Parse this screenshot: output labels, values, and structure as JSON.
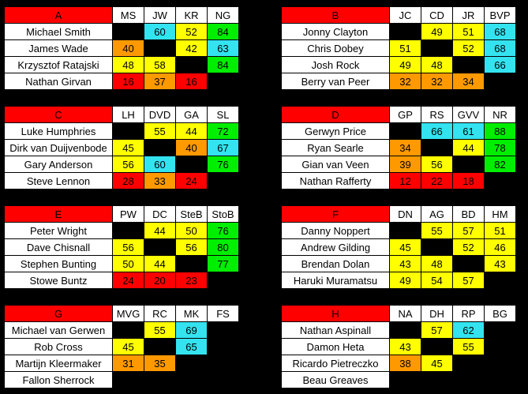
{
  "groups": [
    {
      "label": "A",
      "players": [
        "MS",
        "JW",
        "KR",
        "NG"
      ],
      "rows": [
        {
          "name": "Michael Smith",
          "cells": [
            [
              "",
              "black"
            ],
            [
              "60",
              "cyan"
            ],
            [
              "52",
              "yellow"
            ],
            [
              "84",
              "green"
            ]
          ]
        },
        {
          "name": "James Wade",
          "cells": [
            [
              "40",
              "orange"
            ],
            [
              "",
              "black"
            ],
            [
              "42",
              "yellow"
            ],
            [
              "63",
              "cyan"
            ]
          ]
        },
        {
          "name": "Krzysztof Ratajski",
          "cells": [
            [
              "48",
              "yellow"
            ],
            [
              "58",
              "yellow"
            ],
            [
              "",
              "black"
            ],
            [
              "84",
              "green"
            ]
          ]
        },
        {
          "name": "Nathan Girvan",
          "cells": [
            [
              "16",
              "red"
            ],
            [
              "37",
              "orange"
            ],
            [
              "16",
              "red"
            ],
            [
              "",
              "empty"
            ]
          ]
        }
      ]
    },
    {
      "label": "B",
      "players": [
        "JC",
        "CD",
        "JR",
        "BVP"
      ],
      "rows": [
        {
          "name": "Jonny Clayton",
          "cells": [
            [
              "",
              "black"
            ],
            [
              "49",
              "yellow"
            ],
            [
              "51",
              "yellow"
            ],
            [
              "68",
              "cyan"
            ]
          ]
        },
        {
          "name": "Chris Dobey",
          "cells": [
            [
              "51",
              "yellow"
            ],
            [
              "",
              "black"
            ],
            [
              "52",
              "yellow"
            ],
            [
              "68",
              "cyan"
            ]
          ]
        },
        {
          "name": "Josh Rock",
          "cells": [
            [
              "49",
              "yellow"
            ],
            [
              "48",
              "yellow"
            ],
            [
              "",
              "black"
            ],
            [
              "66",
              "cyan"
            ]
          ]
        },
        {
          "name": "Berry van Peer",
          "cells": [
            [
              "32",
              "orange"
            ],
            [
              "32",
              "orange"
            ],
            [
              "34",
              "orange"
            ],
            [
              "",
              "empty"
            ]
          ]
        }
      ]
    },
    {
      "label": "C",
      "players": [
        "LH",
        "DVD",
        "GA",
        "SL"
      ],
      "rows": [
        {
          "name": "Luke Humphries",
          "cells": [
            [
              "",
              "black"
            ],
            [
              "55",
              "yellow"
            ],
            [
              "44",
              "yellow"
            ],
            [
              "72",
              "green"
            ]
          ]
        },
        {
          "name": "Dirk van Duijvenbode",
          "cells": [
            [
              "45",
              "yellow"
            ],
            [
              "",
              "black"
            ],
            [
              "40",
              "orange"
            ],
            [
              "67",
              "cyan"
            ]
          ]
        },
        {
          "name": "Gary Anderson",
          "cells": [
            [
              "56",
              "yellow"
            ],
            [
              "60",
              "cyan"
            ],
            [
              "",
              "black"
            ],
            [
              "76",
              "green"
            ]
          ]
        },
        {
          "name": "Steve Lennon",
          "cells": [
            [
              "28",
              "red"
            ],
            [
              "33",
              "orange"
            ],
            [
              "24",
              "red"
            ],
            [
              "",
              "empty"
            ]
          ]
        }
      ]
    },
    {
      "label": "D",
      "players": [
        "GP",
        "RS",
        "GVV",
        "NR"
      ],
      "rows": [
        {
          "name": "Gerwyn Price",
          "cells": [
            [
              "",
              "black"
            ],
            [
              "66",
              "cyan"
            ],
            [
              "61",
              "cyan"
            ],
            [
              "88",
              "green"
            ]
          ]
        },
        {
          "name": "Ryan Searle",
          "cells": [
            [
              "34",
              "orange"
            ],
            [
              "",
              "black"
            ],
            [
              "44",
              "yellow"
            ],
            [
              "78",
              "green"
            ]
          ]
        },
        {
          "name": "Gian van Veen",
          "cells": [
            [
              "39",
              "orange"
            ],
            [
              "56",
              "yellow"
            ],
            [
              "",
              "black"
            ],
            [
              "82",
              "green"
            ]
          ]
        },
        {
          "name": "Nathan Rafferty",
          "cells": [
            [
              "12",
              "red"
            ],
            [
              "22",
              "red"
            ],
            [
              "18",
              "red"
            ],
            [
              "",
              "empty"
            ]
          ]
        }
      ]
    },
    {
      "label": "E",
      "players": [
        "PW",
        "DC",
        "SteB",
        "StoB"
      ],
      "rows": [
        {
          "name": "Peter Wright",
          "cells": [
            [
              "",
              "black"
            ],
            [
              "44",
              "yellow"
            ],
            [
              "50",
              "yellow"
            ],
            [
              "76",
              "green"
            ]
          ]
        },
        {
          "name": "Dave Chisnall",
          "cells": [
            [
              "56",
              "yellow"
            ],
            [
              "",
              "black"
            ],
            [
              "56",
              "yellow"
            ],
            [
              "80",
              "green"
            ]
          ]
        },
        {
          "name": "Stephen Bunting",
          "cells": [
            [
              "50",
              "yellow"
            ],
            [
              "44",
              "yellow"
            ],
            [
              "",
              "black"
            ],
            [
              "77",
              "green"
            ]
          ]
        },
        {
          "name": "Stowe Buntz",
          "cells": [
            [
              "24",
              "red"
            ],
            [
              "20",
              "red"
            ],
            [
              "23",
              "red"
            ],
            [
              "",
              "empty"
            ]
          ]
        }
      ]
    },
    {
      "label": "F",
      "players": [
        "DN",
        "AG",
        "BD",
        "HM"
      ],
      "rows": [
        {
          "name": "Danny Noppert",
          "cells": [
            [
              "",
              "black"
            ],
            [
              "55",
              "yellow"
            ],
            [
              "57",
              "yellow"
            ],
            [
              "51",
              "yellow"
            ]
          ]
        },
        {
          "name": "Andrew Gilding",
          "cells": [
            [
              "45",
              "yellow"
            ],
            [
              "",
              "black"
            ],
            [
              "52",
              "yellow"
            ],
            [
              "46",
              "yellow"
            ]
          ]
        },
        {
          "name": "Brendan Dolan",
          "cells": [
            [
              "43",
              "yellow"
            ],
            [
              "48",
              "yellow"
            ],
            [
              "",
              "black"
            ],
            [
              "43",
              "yellow"
            ]
          ]
        },
        {
          "name": "Haruki Muramatsu",
          "cells": [
            [
              "49",
              "yellow"
            ],
            [
              "54",
              "yellow"
            ],
            [
              "57",
              "yellow"
            ],
            [
              "",
              "empty"
            ]
          ]
        }
      ]
    },
    {
      "label": "G",
      "players": [
        "MVG",
        "RC",
        "MK",
        "FS"
      ],
      "rows": [
        {
          "name": "Michael van Gerwen",
          "cells": [
            [
              "",
              "black"
            ],
            [
              "55",
              "yellow"
            ],
            [
              "69",
              "cyan"
            ],
            [
              "",
              "empty"
            ]
          ]
        },
        {
          "name": "Rob Cross",
          "cells": [
            [
              "45",
              "yellow"
            ],
            [
              "",
              "black"
            ],
            [
              "65",
              "cyan"
            ],
            [
              "",
              "empty"
            ]
          ]
        },
        {
          "name": "Martijn Kleermaker",
          "cells": [
            [
              "31",
              "orange"
            ],
            [
              "35",
              "orange"
            ],
            [
              "",
              "black"
            ],
            [
              "",
              "empty"
            ]
          ]
        },
        {
          "name": "Fallon Sherrock",
          "cells": [
            [
              "",
              "empty"
            ],
            [
              "",
              "empty"
            ],
            [
              "",
              "empty"
            ],
            [
              "",
              "empty"
            ]
          ]
        }
      ]
    },
    {
      "label": "H",
      "players": [
        "NA",
        "DH",
        "RP",
        "BG"
      ],
      "rows": [
        {
          "name": "Nathan Aspinall",
          "cells": [
            [
              "",
              "black"
            ],
            [
              "57",
              "yellow"
            ],
            [
              "62",
              "cyan"
            ],
            [
              "",
              "empty"
            ]
          ]
        },
        {
          "name": "Damon Heta",
          "cells": [
            [
              "43",
              "yellow"
            ],
            [
              "",
              "black"
            ],
            [
              "55",
              "yellow"
            ],
            [
              "",
              "empty"
            ]
          ]
        },
        {
          "name": "Ricardo Pietreczko",
          "cells": [
            [
              "38",
              "orange"
            ],
            [
              "45",
              "yellow"
            ],
            [
              "",
              "black"
            ],
            [
              "",
              "empty"
            ]
          ]
        },
        {
          "name": "Beau Greaves",
          "cells": [
            [
              "",
              "empty"
            ],
            [
              "",
              "empty"
            ],
            [
              "",
              "empty"
            ],
            [
              "",
              "empty"
            ]
          ]
        }
      ]
    }
  ]
}
